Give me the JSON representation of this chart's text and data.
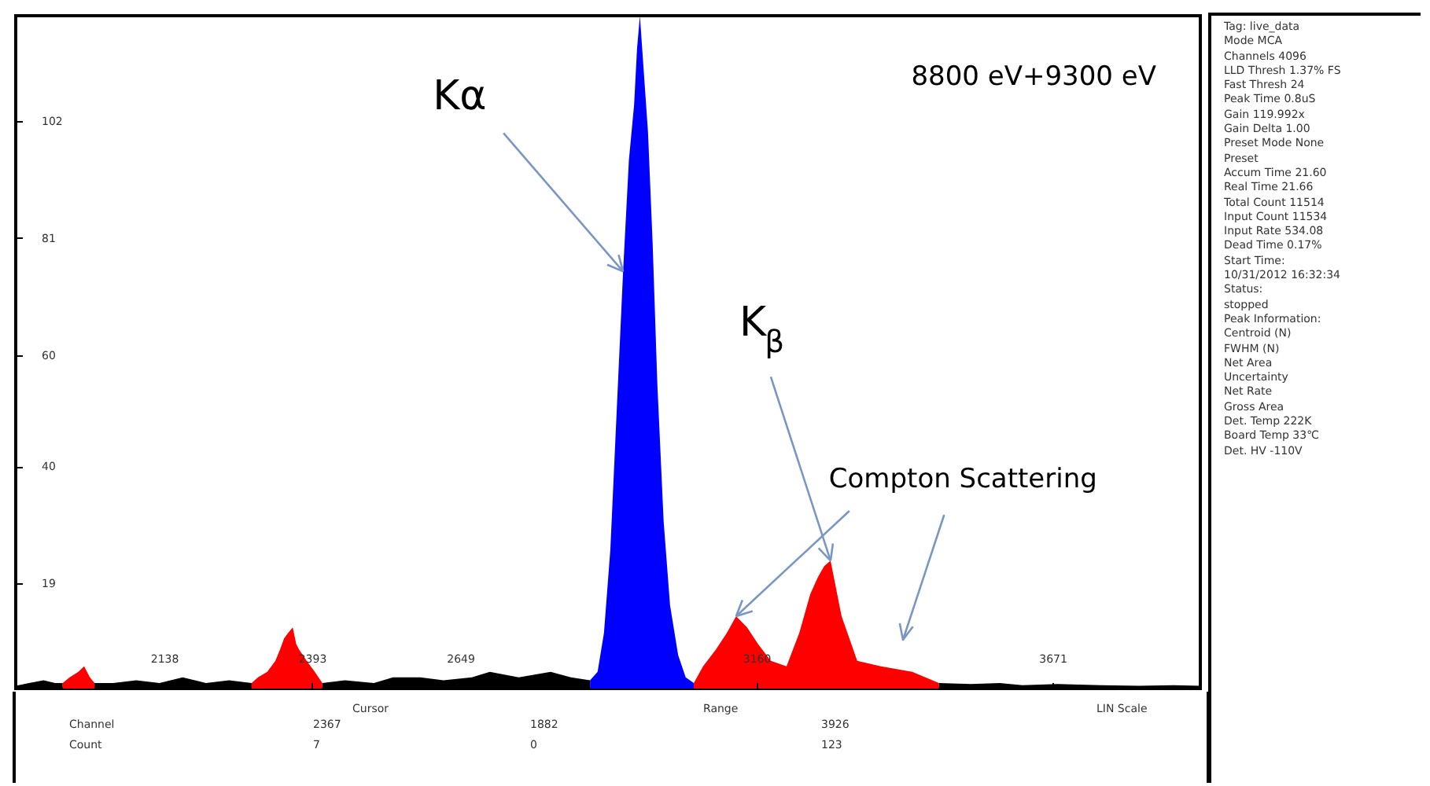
{
  "chart_data": [
    {
      "type": "area",
      "title": "8800 eV+9300 eV",
      "xlim": [
        1882,
        3926
      ],
      "xticks": [
        2138,
        2393,
        2649,
        3160,
        3671
      ],
      "ylim": [
        0,
        121
      ],
      "yticks": [
        19,
        40,
        60,
        81,
        102
      ],
      "annotations": [
        {
          "text": "Kα",
          "x": 2930,
          "y": 75
        },
        {
          "text": "K$_{β}$",
          "x": 3288,
          "y": 23
        },
        {
          "text": "Compton Scattering",
          "x": 3125,
          "y": 13
        },
        "Cursor",
        "Range",
        "LIN Scale",
        "Channel",
        "Count",
        "2367",
        "7",
        "1882",
        "0",
        "3926",
        "123"
      ],
      "series": [
        {
          "color": "#000000",
          "x": [
            1882,
            1905,
            1930,
            1950,
            1963
          ],
          "values": [
            0.5,
            1,
            1.5,
            1,
            1
          ]
        },
        {
          "color": "#ff0000",
          "x": [
            1963,
            1975,
            1990,
            2000,
            2010,
            2018
          ],
          "values": [
            1,
            2,
            3,
            4,
            2,
            1
          ]
        },
        {
          "color": "#000000",
          "x": [
            2018,
            2050,
            2090,
            2130,
            2170,
            2210,
            2250,
            2289
          ],
          "values": [
            1,
            1,
            1.5,
            1,
            2,
            1,
            1.5,
            1
          ]
        },
        {
          "color": "#ff0000",
          "x": [
            2289,
            2300,
            2316,
            2330,
            2338,
            2345,
            2352,
            2360,
            2366,
            2371,
            2384,
            2398,
            2411
          ],
          "values": [
            1,
            2,
            3,
            5,
            7,
            9,
            10,
            11,
            8,
            7,
            5,
            3,
            1
          ]
        },
        {
          "color": "#000000",
          "x": [
            2411,
            2450,
            2500,
            2533,
            2580,
            2620,
            2669,
            2700,
            2750,
            2805,
            2840,
            2873
          ],
          "values": [
            1,
            1.5,
            1,
            2,
            2,
            1.5,
            2,
            3,
            2,
            3,
            2,
            1.5
          ]
        },
        {
          "color": "#0000ff",
          "x": [
            2873,
            2886,
            2897,
            2908,
            2919,
            2930,
            2940,
            2949,
            2954,
            2959,
            2965,
            2973,
            2981,
            2989,
            3000,
            3011,
            3025,
            3038,
            3052
          ],
          "values": [
            1.5,
            3,
            10,
            25,
            50,
            75,
            95,
            105,
            115,
            121,
            112,
            100,
            80,
            55,
            30,
            15,
            6,
            2,
            1
          ]
        },
        {
          "color": "#ff0000",
          "x": [
            3052,
            3068,
            3090,
            3109,
            3125,
            3144,
            3163,
            3185,
            3212,
            3234,
            3253,
            3266,
            3277,
            3288,
            3307,
            3334,
            3375,
            3429,
            3475
          ],
          "values": [
            1,
            4,
            7,
            10,
            13,
            11,
            8,
            5,
            4,
            10,
            17,
            20,
            22,
            23,
            13,
            5,
            4,
            3,
            1
          ]
        },
        {
          "color": "#000000",
          "x": [
            3475,
            3530,
            3580,
            3619,
            3680,
            3755,
            3820,
            3880,
            3926
          ],
          "values": [
            1,
            0.8,
            1,
            0.6,
            0.8,
            0.6,
            0.5,
            0.6,
            0.5
          ]
        }
      ]
    },
    {
      "type": "other",
      "annotations": [
        "Tag: live_data",
        "Mode MCA",
        "Channels 4096",
        "LLD Thresh 1.37% FS",
        "Fast Thresh 24",
        "Peak Time 0.8uS",
        "Gain 119.992x",
        "Gain Delta 1.00",
        "Preset Mode None",
        "Preset",
        "Accum Time 21.60",
        "Real Time 21.66",
        "Total Count 11514",
        "Input Count 11534",
        "Input Rate 534.08",
        "Dead Time 0.17%",
        "Start Time:",
        "10/31/2012 16:32:34",
        "Status:",
        "stopped",
        "Peak Information:",
        "Centroid (N)",
        "FWHM (N)",
        "Net Area",
        "Uncertainty",
        "Net Rate",
        "Gross Area",
        "Det. Temp 222K",
        "Board Temp 33℃",
        "Det. HV -110V"
      ]
    }
  ]
}
